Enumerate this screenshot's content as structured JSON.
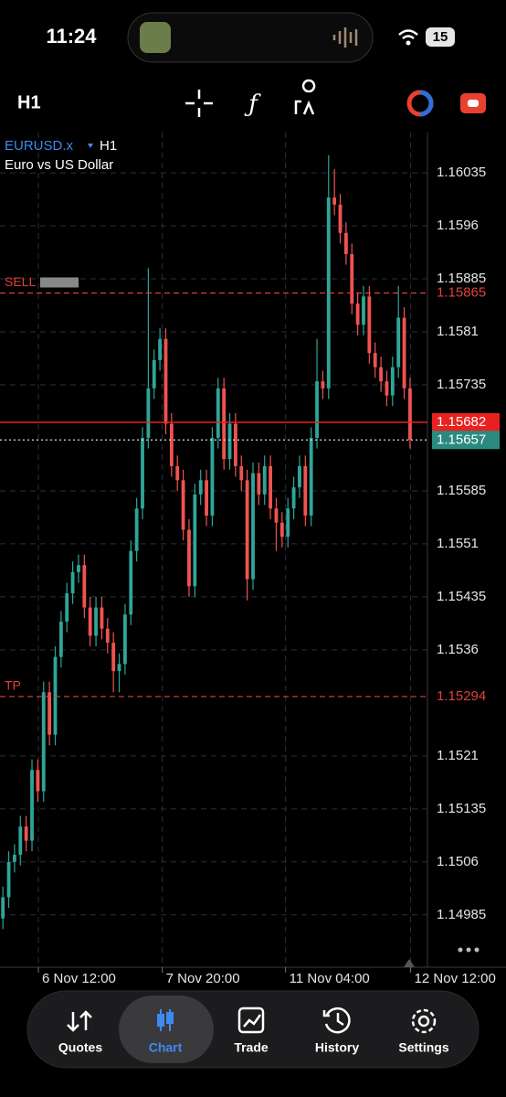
{
  "status_bar": {
    "time": "11:24",
    "battery": "15"
  },
  "toolbar": {
    "timeframe": "H1"
  },
  "chart_data": {
    "type": "candlestick",
    "symbol": "EURUSD.x",
    "timeframe": "H1",
    "description": "Euro vs US Dollar",
    "up_color": "#2fa597",
    "down_color": "#ef5350",
    "grid": true,
    "open": [
      1.1498,
      1.1501,
      1.1506,
      1.1507,
      1.1511,
      1.1509,
      1.1519,
      1.1516,
      1.153,
      1.1524,
      1.1535,
      1.154,
      1.1544,
      1.1547,
      1.1548,
      1.1542,
      1.1538,
      1.1542,
      1.1539,
      1.1537,
      1.1533,
      1.1534,
      1.1541,
      1.155,
      1.1556,
      1.1566,
      1.1573,
      1.1577,
      1.158,
      1.1568,
      1.1562,
      1.156,
      1.1553,
      1.1545,
      1.1558,
      1.156,
      1.1555,
      1.1566,
      1.1573,
      1.1563,
      1.1568,
      1.1562,
      1.156,
      1.1546,
      1.1561,
      1.1558,
      1.1562,
      1.1556,
      1.1554,
      1.1552,
      1.1556,
      1.1559,
      1.1562,
      1.1555,
      1.1566,
      1.1574,
      1.1573,
      1.16,
      1.1599,
      1.1595,
      1.1592,
      1.1585,
      1.1582,
      1.1586,
      1.1578,
      1.1576,
      1.1574,
      1.1572,
      1.1576,
      1.1583,
      1.1573
    ],
    "high": [
      1.15025,
      1.15075,
      1.15085,
      1.15125,
      1.15125,
      1.15205,
      1.15205,
      1.15315,
      1.15315,
      1.15365,
      1.15415,
      1.15455,
      1.15485,
      1.15495,
      1.15495,
      1.15435,
      1.15435,
      1.15435,
      1.15405,
      1.15385,
      1.15355,
      1.15425,
      1.15515,
      1.15575,
      1.15675,
      1.159,
      1.15785,
      1.15815,
      1.15815,
      1.15695,
      1.15635,
      1.15615,
      1.15545,
      1.15595,
      1.15615,
      1.15615,
      1.15675,
      1.15745,
      1.15745,
      1.15695,
      1.15695,
      1.15635,
      1.15615,
      1.15625,
      1.15625,
      1.15635,
      1.15635,
      1.15575,
      1.15555,
      1.15575,
      1.15605,
      1.15635,
      1.15635,
      1.15675,
      1.158,
      1.15755,
      1.1606,
      1.1604,
      1.16005,
      1.15965,
      1.15935,
      1.15865,
      1.15875,
      1.15875,
      1.15795,
      1.15775,
      1.15755,
      1.15775,
      1.15875,
      1.15845,
      1.15745
    ],
    "low": [
      1.14965,
      1.14995,
      1.15045,
      1.15055,
      1.15075,
      1.15075,
      1.15145,
      1.15145,
      1.15225,
      1.15225,
      1.15335,
      1.15385,
      1.15425,
      1.15455,
      1.15405,
      1.15365,
      1.15365,
      1.15375,
      1.15355,
      1.153,
      1.153,
      1.15325,
      1.15395,
      1.15485,
      1.15545,
      1.15645,
      1.15715,
      1.15755,
      1.15665,
      1.15605,
      1.15585,
      1.15515,
      1.15435,
      1.15435,
      1.15565,
      1.15535,
      1.15535,
      1.15645,
      1.15615,
      1.15615,
      1.15605,
      1.15585,
      1.1543,
      1.15445,
      1.15565,
      1.15565,
      1.15545,
      1.155,
      1.15505,
      1.15505,
      1.15545,
      1.15575,
      1.15535,
      1.15535,
      1.15645,
      1.15715,
      1.15715,
      1.15975,
      1.15935,
      1.15905,
      1.15835,
      1.15805,
      1.15805,
      1.15765,
      1.15745,
      1.15725,
      1.15705,
      1.15705,
      1.15745,
      1.15715,
      1.15645
    ],
    "close": [
      1.1501,
      1.1506,
      1.1507,
      1.1511,
      1.1509,
      1.1519,
      1.1516,
      1.153,
      1.1524,
      1.1535,
      1.154,
      1.1544,
      1.1547,
      1.1548,
      1.1542,
      1.1538,
      1.1542,
      1.1539,
      1.1537,
      1.1533,
      1.1534,
      1.1541,
      1.155,
      1.1556,
      1.1566,
      1.1573,
      1.1577,
      1.158,
      1.1568,
      1.1562,
      1.156,
      1.1553,
      1.1545,
      1.1558,
      1.156,
      1.1555,
      1.1566,
      1.1573,
      1.1563,
      1.1568,
      1.1562,
      1.156,
      1.1546,
      1.1561,
      1.1558,
      1.1562,
      1.1556,
      1.1554,
      1.1552,
      1.1556,
      1.1559,
      1.1562,
      1.1555,
      1.1566,
      1.1574,
      1.1573,
      1.16,
      1.1599,
      1.1595,
      1.1592,
      1.1585,
      1.1582,
      1.1586,
      1.1578,
      1.1576,
      1.1574,
      1.1572,
      1.1576,
      1.1583,
      1.1573,
      1.15657
    ],
    "xlim": [
      0,
      87
    ],
    "xticks": [
      {
        "value": 6.6,
        "label": "6 Nov 12:00"
      },
      {
        "value": 27.9,
        "label": "7 Nov 20:00"
      },
      {
        "value": 49.1,
        "label": "11 Nov 04:00"
      },
      {
        "value": 70.6,
        "label": "12 Nov 12:00"
      }
    ],
    "ylim": [
      1.14911,
      1.16092
    ],
    "yticks": [
      1.16035,
      1.1596,
      1.15885,
      1.1581,
      1.15735,
      1.15585,
      1.1551,
      1.15435,
      1.1536,
      1.1521,
      1.15135,
      1.1506,
      1.14985
    ],
    "price_lines": [
      {
        "name": "SELL",
        "value": 1.15865,
        "color": "#e0413b",
        "style": "dashed"
      },
      {
        "value": 1.15682,
        "color": "#e8211f",
        "style": "solid"
      },
      {
        "value": 1.15657,
        "color": "#2a8a7f",
        "style": "dotted"
      },
      {
        "name": "TP",
        "value": 1.15294,
        "color": "#e0413b",
        "style": "dashed"
      }
    ]
  },
  "nav": {
    "items": [
      "Quotes",
      "Chart",
      "Trade",
      "History",
      "Settings"
    ]
  }
}
